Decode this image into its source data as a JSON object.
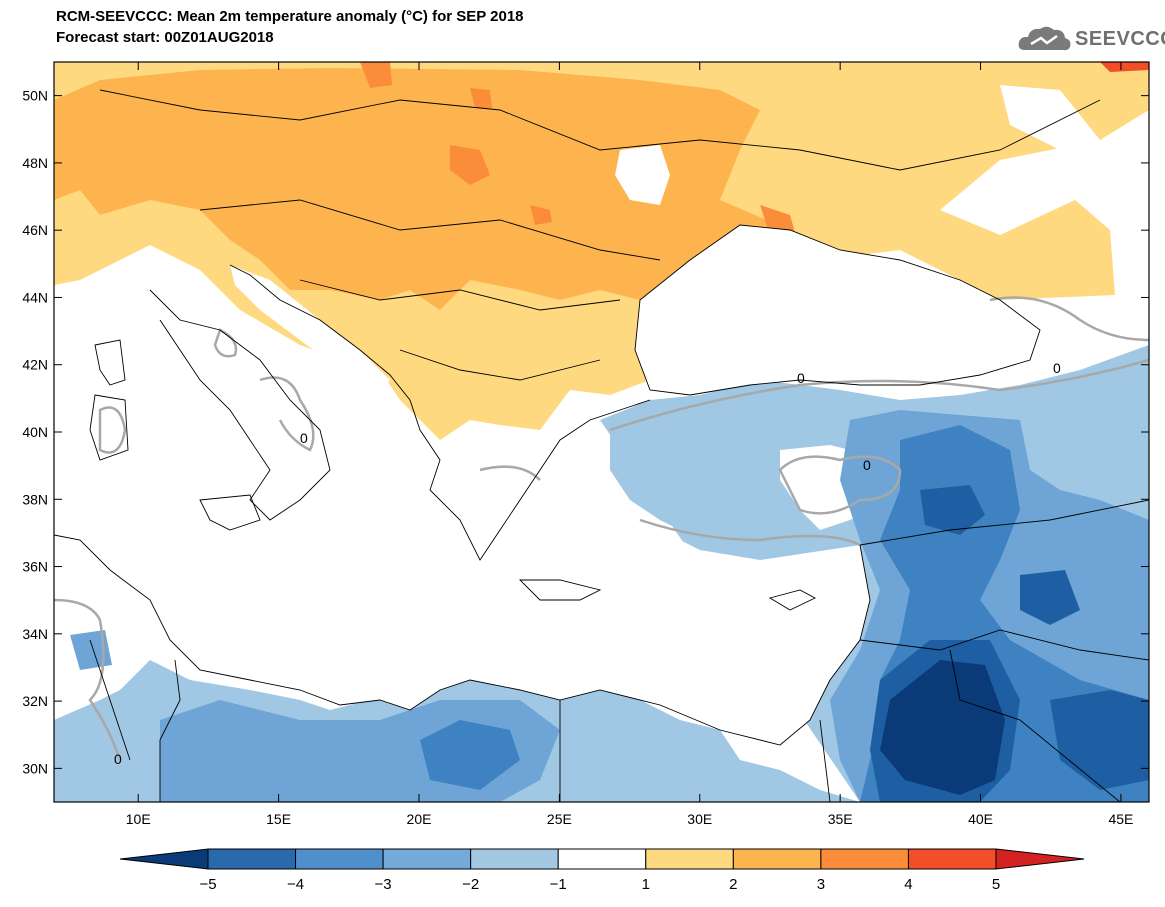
{
  "header": {
    "title": "RCM-SEEVCCC: Mean 2m temperature anomaly (°C) for SEP 2018",
    "subtitle": "Forecast start: 00Z01AUG2018"
  },
  "logo": {
    "text": "SEEVCCC",
    "icon": "cloud-icon"
  },
  "map": {
    "lon_range": [
      7,
      46
    ],
    "lat_range": [
      29,
      51
    ],
    "lon_ticks": [
      10,
      15,
      20,
      25,
      30,
      35,
      40,
      45
    ],
    "lat_ticks": [
      30,
      32,
      34,
      36,
      38,
      40,
      42,
      44,
      46,
      48,
      50
    ],
    "lon_labels": [
      "10E",
      "15E",
      "20E",
      "25E",
      "30E",
      "35E",
      "40E",
      "45E"
    ],
    "lat_labels": [
      "30N",
      "32N",
      "34N",
      "36N",
      "38N",
      "40N",
      "42N",
      "44N",
      "46N",
      "48N",
      "50N"
    ],
    "zero_contour_label": "0"
  },
  "colorbar": {
    "labels": [
      "−5",
      "−4",
      "−3",
      "−2",
      "−1",
      "1",
      "2",
      "3",
      "4",
      "5"
    ],
    "colors": [
      "#0a3a78",
      "#2a6aac",
      "#4f8fcb",
      "#75a9d9",
      "#a3c8e4",
      "#ffffff",
      "#fed97f",
      "#fdb44f",
      "#fb8c3a",
      "#f24e28",
      "#d42121"
    ]
  },
  "palette": {
    "neg5": "#0a3a78",
    "neg4": "#1e5fa3",
    "neg3": "#3f82c2",
    "neg2": "#6ea5d6",
    "neg1": "#a0c7e3",
    "pos1": "#fed97f",
    "pos2": "#fdb44f",
    "pos3": "#fb8c3a",
    "pos4": "#f24e28"
  }
}
